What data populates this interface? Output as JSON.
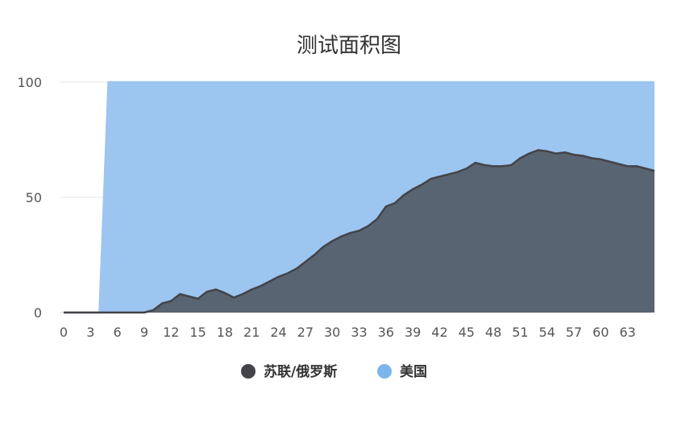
{
  "chart_data": {
    "type": "area",
    "title": "测试面积图",
    "xlabel": "",
    "ylabel": "",
    "ylim": [
      0,
      100
    ],
    "yticks": [
      0,
      50,
      100
    ],
    "xlim": [
      0,
      66
    ],
    "xticks": [
      0,
      3,
      6,
      9,
      12,
      15,
      18,
      21,
      24,
      27,
      30,
      33,
      36,
      39,
      42,
      45,
      48,
      51,
      54,
      57,
      60,
      63
    ],
    "grid": true,
    "legend_position": "bottom",
    "series": [
      {
        "name": "美国",
        "color": "#9cc5f0",
        "x": [
          0,
          1,
          2,
          3,
          4,
          5,
          6,
          7,
          8,
          9,
          10,
          11,
          12,
          13,
          14,
          15,
          16,
          17,
          18,
          19,
          20,
          21,
          22,
          23,
          24,
          25,
          26,
          27,
          28,
          29,
          30,
          31,
          32,
          33,
          34,
          35,
          36,
          37,
          38,
          39,
          40,
          41,
          42,
          43,
          44,
          45,
          46,
          47,
          48,
          49,
          50,
          51,
          52,
          53,
          54,
          55,
          56,
          57,
          58,
          59,
          60,
          61,
          62,
          63,
          64,
          65,
          66
        ],
        "values": [
          0,
          0,
          0,
          0,
          0,
          100,
          100,
          100,
          100,
          100,
          100,
          100,
          100,
          100,
          100,
          100,
          100,
          100,
          100,
          100,
          100,
          100,
          100,
          100,
          100,
          100,
          100,
          100,
          100,
          100,
          100,
          100,
          100,
          100,
          100,
          100,
          100,
          100,
          100,
          100,
          100,
          100,
          100,
          100,
          100,
          100,
          100,
          100,
          100,
          100,
          100,
          100,
          100,
          100,
          100,
          100,
          100,
          100,
          100,
          100,
          100,
          100,
          100,
          100,
          100,
          100,
          100
        ]
      },
      {
        "name": "苏联/俄罗斯",
        "color": "#434348",
        "x": [
          0,
          1,
          2,
          3,
          4,
          5,
          6,
          7,
          8,
          9,
          10,
          11,
          12,
          13,
          14,
          15,
          16,
          17,
          18,
          19,
          20,
          21,
          22,
          23,
          24,
          25,
          26,
          27,
          28,
          29,
          30,
          31,
          32,
          33,
          34,
          35,
          36,
          37,
          38,
          39,
          40,
          41,
          42,
          43,
          44,
          45,
          46,
          47,
          48,
          49,
          50,
          51,
          52,
          53,
          54,
          55,
          56,
          57,
          58,
          59,
          60,
          61,
          62,
          63,
          64,
          65,
          66
        ],
        "values": [
          0,
          0,
          0,
          0,
          0,
          0,
          0,
          0,
          0,
          0,
          1,
          4,
          5,
          8,
          7,
          6,
          9,
          10,
          8.5,
          6.5,
          8,
          10,
          11.5,
          13.5,
          15.5,
          17,
          19,
          22,
          25,
          28.5,
          31,
          33,
          34.5,
          35.5,
          37.5,
          40.5,
          46,
          47.5,
          51,
          53.5,
          55.5,
          58,
          59,
          60,
          61,
          62.5,
          65,
          64,
          63.5,
          63.5,
          64,
          67,
          69,
          70.5,
          70,
          69,
          69.5,
          68.5,
          68,
          67,
          66.5,
          65.5,
          64.5,
          63.5,
          63.5,
          62.5,
          61.5
        ]
      }
    ],
    "legend": [
      "苏联/俄罗斯",
      "美国"
    ]
  }
}
